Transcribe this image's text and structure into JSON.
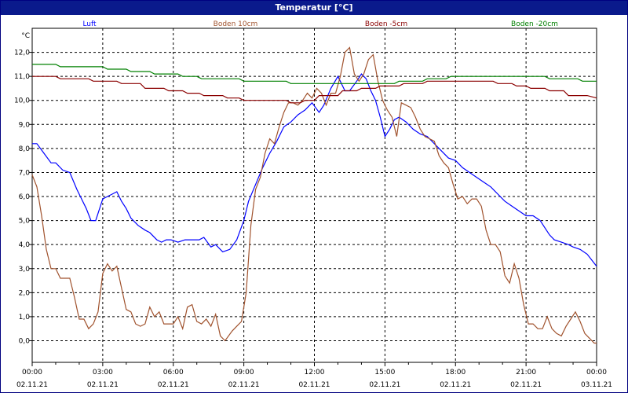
{
  "window": {
    "title": "Temperatur [°C]"
  },
  "chart_data": {
    "type": "line",
    "title": "Temperatur [°C]",
    "ylabel": "°C",
    "ylim": [
      -0.9,
      13.0
    ],
    "y_ticks": [
      "0,0",
      "1,0",
      "2,0",
      "3,0",
      "4,0",
      "5,0",
      "6,0",
      "7,0",
      "8,0",
      "9,0",
      "10,0",
      "11,0",
      "12,0"
    ],
    "x_ticks": [
      {
        "time": "00:00",
        "date": "02.11.21"
      },
      {
        "time": "03:00",
        "date": "02.11.21"
      },
      {
        "time": "06:00",
        "date": "02.11.21"
      },
      {
        "time": "09:00",
        "date": "02.11.21"
      },
      {
        "time": "12:00",
        "date": "02.11.21"
      },
      {
        "time": "15:00",
        "date": "02.11.21"
      },
      {
        "time": "18:00",
        "date": "02.11.21"
      },
      {
        "time": "21:00",
        "date": "02.11.21"
      },
      {
        "time": "00:00",
        "date": "03.11.21"
      }
    ],
    "xlim_hours": [
      0,
      24
    ],
    "grid": true,
    "series": [
      {
        "name": "Luft",
        "color": "#0000ff",
        "x": [
          0,
          0.2,
          0.5,
          0.8,
          1.0,
          1.3,
          1.6,
          1.9,
          2.1,
          2.3,
          2.5,
          2.7,
          2.8,
          3.0,
          3.2,
          3.4,
          3.6,
          3.8,
          4.0,
          4.2,
          4.5,
          4.8,
          5.0,
          5.3,
          5.5,
          5.7,
          5.9,
          6.2,
          6.5,
          6.8,
          7.1,
          7.3,
          7.6,
          7.8,
          8.1,
          8.4,
          8.7,
          9.0,
          9.2,
          9.5,
          9.8,
          10.1,
          10.4,
          10.7,
          11.0,
          11.3,
          11.6,
          11.9,
          12.2,
          12.4,
          12.7,
          13.0,
          13.3,
          13.5,
          13.8,
          14.0,
          14.2,
          14.4,
          14.6,
          14.8,
          15.0,
          15.2,
          15.4,
          15.6,
          15.9,
          16.2,
          16.5,
          16.8,
          17.1,
          17.4,
          17.7,
          18.0,
          18.3,
          18.6,
          18.9,
          19.2,
          19.5,
          19.8,
          20.1,
          20.4,
          20.7,
          21.0,
          21.3,
          21.6,
          21.8,
          22.0,
          22.2,
          22.5,
          22.8,
          23.0,
          23.3,
          23.6,
          24.0
        ],
        "y": [
          8.2,
          8.2,
          7.8,
          7.4,
          7.4,
          7.1,
          7.0,
          6.3,
          5.9,
          5.5,
          5.0,
          5.0,
          5.3,
          5.9,
          6.0,
          6.1,
          6.2,
          5.8,
          5.5,
          5.1,
          4.8,
          4.6,
          4.5,
          4.2,
          4.1,
          4.2,
          4.2,
          4.1,
          4.2,
          4.2,
          4.2,
          4.3,
          3.9,
          4.0,
          3.7,
          3.8,
          4.2,
          5.0,
          5.8,
          6.5,
          7.2,
          7.8,
          8.3,
          8.9,
          9.1,
          9.4,
          9.6,
          9.9,
          9.5,
          9.8,
          10.5,
          11.0,
          10.4,
          10.4,
          10.8,
          11.1,
          10.9,
          10.4,
          10.0,
          9.3,
          8.5,
          8.8,
          9.2,
          9.3,
          9.1,
          8.8,
          8.6,
          8.5,
          8.2,
          7.9,
          7.6,
          7.5,
          7.2,
          7.0,
          6.8,
          6.6,
          6.4,
          6.1,
          5.8,
          5.6,
          5.4,
          5.2,
          5.2,
          5.0,
          4.7,
          4.4,
          4.2,
          4.1,
          4.0,
          3.9,
          3.8,
          3.6,
          3.1
        ]
      },
      {
        "name": "Boden 10cm",
        "color": "#a0522d",
        "x": [
          0,
          0.2,
          0.4,
          0.6,
          0.8,
          1.0,
          1.2,
          1.4,
          1.6,
          1.8,
          2.0,
          2.2,
          2.4,
          2.6,
          2.8,
          3.0,
          3.2,
          3.4,
          3.6,
          3.8,
          4.0,
          4.2,
          4.4,
          4.6,
          4.8,
          5.0,
          5.2,
          5.4,
          5.6,
          5.8,
          6.0,
          6.2,
          6.4,
          6.6,
          6.8,
          7.0,
          7.2,
          7.4,
          7.6,
          7.8,
          8.0,
          8.2,
          8.5,
          8.7,
          8.9,
          9.1,
          9.3,
          9.5,
          9.7,
          9.9,
          10.1,
          10.3,
          10.5,
          10.7,
          10.9,
          11.1,
          11.3,
          11.5,
          11.7,
          11.9,
          12.1,
          12.3,
          12.5,
          12.7,
          12.9,
          13.1,
          13.3,
          13.5,
          13.7,
          13.9,
          14.1,
          14.3,
          14.5,
          14.7,
          14.9,
          15.1,
          15.3,
          15.5,
          15.7,
          15.9,
          16.1,
          16.3,
          16.5,
          16.7,
          16.9,
          17.1,
          17.3,
          17.5,
          17.7,
          17.9,
          18.1,
          18.3,
          18.5,
          18.7,
          18.9,
          19.1,
          19.3,
          19.5,
          19.7,
          19.9,
          20.1,
          20.3,
          20.5,
          20.7,
          20.9,
          21.1,
          21.3,
          21.5,
          21.7,
          21.9,
          22.1,
          22.3,
          22.5,
          22.7,
          22.9,
          23.1,
          23.3,
          23.5,
          23.7,
          23.9,
          24.0
        ],
        "y": [
          6.9,
          6.4,
          5.2,
          3.8,
          3.0,
          3.0,
          2.6,
          2.6,
          2.6,
          1.8,
          0.9,
          0.9,
          0.5,
          0.7,
          1.2,
          2.8,
          3.2,
          2.9,
          3.1,
          2.2,
          1.3,
          1.2,
          0.7,
          0.6,
          0.7,
          1.4,
          1.0,
          1.2,
          0.7,
          0.7,
          0.7,
          1.0,
          0.5,
          1.4,
          1.5,
          0.8,
          0.7,
          0.9,
          0.6,
          1.1,
          0.2,
          0.0,
          0.4,
          0.6,
          0.8,
          2.0,
          4.8,
          6.3,
          6.8,
          7.8,
          8.4,
          8.2,
          8.9,
          9.5,
          9.9,
          9.9,
          9.8,
          10.0,
          10.3,
          10.1,
          10.5,
          10.3,
          9.8,
          10.3,
          10.3,
          11.0,
          12.0,
          12.2,
          11.1,
          10.8,
          11.1,
          11.7,
          11.9,
          10.8,
          10.0,
          9.6,
          9.3,
          8.5,
          9.9,
          9.8,
          9.7,
          9.3,
          8.8,
          8.5,
          8.4,
          8.3,
          7.7,
          7.4,
          7.2,
          6.5,
          5.9,
          6.0,
          5.7,
          5.9,
          5.9,
          5.6,
          4.6,
          4.0,
          4.0,
          3.7,
          2.7,
          2.4,
          3.2,
          2.6,
          1.5,
          0.7,
          0.7,
          0.5,
          0.5,
          1.0,
          0.5,
          0.3,
          0.2,
          0.6,
          0.9,
          1.2,
          0.8,
          0.3,
          0.1,
          -0.1,
          -0.1
        ]
      },
      {
        "name": "Boden -5cm",
        "color": "#8b0000",
        "x": [
          0,
          1.0,
          1.2,
          2.4,
          2.6,
          3.6,
          3.8,
          4.6,
          4.8,
          5.6,
          5.8,
          6.4,
          6.6,
          7.1,
          7.3,
          8.1,
          8.3,
          8.8,
          9.0,
          10.8,
          11.0,
          11.4,
          11.6,
          12.0,
          12.2,
          13.0,
          13.2,
          13.8,
          14.0,
          14.6,
          14.8,
          15.6,
          15.8,
          16.6,
          16.8,
          17.6,
          17.8,
          19.6,
          19.8,
          20.4,
          20.6,
          21.0,
          21.2,
          21.8,
          22.0,
          22.6,
          22.8,
          23.6,
          24.0
        ],
        "y": [
          11.0,
          11.0,
          10.9,
          10.9,
          10.8,
          10.8,
          10.7,
          10.7,
          10.5,
          10.5,
          10.4,
          10.4,
          10.3,
          10.3,
          10.2,
          10.2,
          10.1,
          10.1,
          10.0,
          10.0,
          9.9,
          9.9,
          10.0,
          10.0,
          10.2,
          10.2,
          10.4,
          10.4,
          10.5,
          10.5,
          10.6,
          10.6,
          10.7,
          10.7,
          10.8,
          10.8,
          10.8,
          10.8,
          10.7,
          10.7,
          10.6,
          10.6,
          10.5,
          10.5,
          10.4,
          10.4,
          10.2,
          10.2,
          10.1
        ]
      },
      {
        "name": "Boden -20cm",
        "color": "#008000",
        "x": [
          0,
          1.0,
          1.2,
          3.0,
          3.2,
          4.0,
          4.2,
          5.0,
          5.2,
          6.2,
          6.4,
          7.0,
          7.2,
          8.8,
          9.0,
          10.8,
          11.0,
          15.4,
          15.6,
          16.6,
          16.8,
          17.6,
          17.8,
          21.8,
          22.0,
          23.2,
          23.4,
          24.0
        ],
        "y": [
          11.5,
          11.5,
          11.4,
          11.4,
          11.3,
          11.3,
          11.2,
          11.2,
          11.1,
          11.1,
          11.0,
          11.0,
          10.9,
          10.9,
          10.8,
          10.8,
          10.7,
          10.7,
          10.8,
          10.8,
          10.9,
          10.9,
          11.0,
          11.0,
          10.9,
          10.9,
          10.8,
          10.8
        ]
      }
    ]
  }
}
